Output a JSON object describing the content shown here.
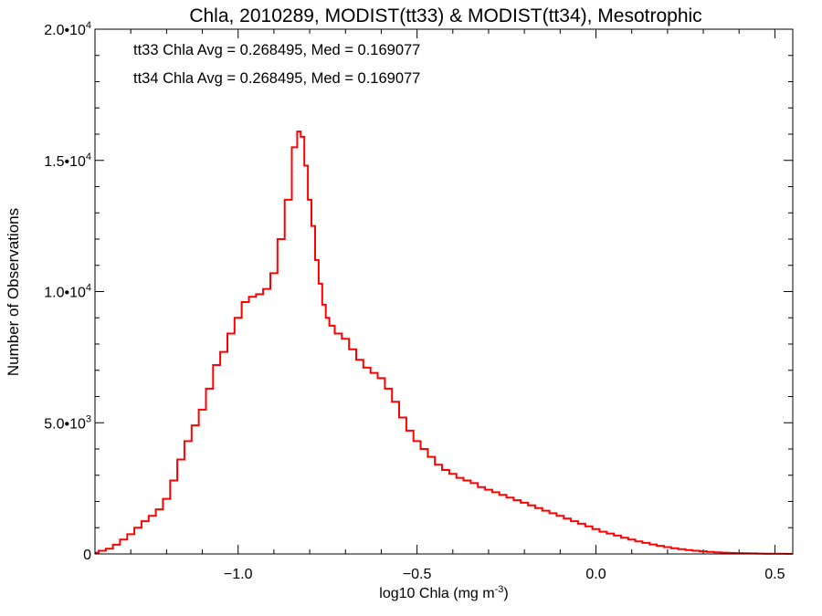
{
  "chart_data": {
    "type": "line",
    "title": "Chla, 2010289, MODIST(tt33) & MODIST(tt34), Mesotrophic",
    "xlabel": "log10 Chla (mg m",
    "xlabel_sup": "-3",
    "xlabel_end": ")",
    "ylabel": "Number of Observations",
    "xlim": [
      -1.4,
      0.55
    ],
    "ylim": [
      0,
      20000
    ],
    "x_ticks": [
      {
        "value": -1.0,
        "label": "−1.0"
      },
      {
        "value": -0.5,
        "label": "−0.5"
      },
      {
        "value": 0.0,
        "label": "0.0"
      },
      {
        "value": 0.5,
        "label": "0.5"
      }
    ],
    "y_ticks": [
      {
        "value": 0,
        "mant": "0",
        "exp": ""
      },
      {
        "value": 5000,
        "mant": "5.0•10",
        "exp": "3"
      },
      {
        "value": 10000,
        "mant": "1.0•10",
        "exp": "4"
      },
      {
        "value": 15000,
        "mant": "1.5•10",
        "exp": "4"
      },
      {
        "value": 20000,
        "mant": "2.0•10",
        "exp": "4"
      }
    ],
    "annotations": [
      {
        "text": "tt33 Chla Avg = 0.268495, Med = 0.169077",
        "color": "#000000"
      },
      {
        "text": "tt34 Chla Avg = 0.268495, Med = 0.169077",
        "color": "#ff0000"
      }
    ],
    "series": [
      {
        "name": "tt34",
        "color": "#ff0000",
        "x": [
          -1.4,
          -1.38,
          -1.36,
          -1.34,
          -1.32,
          -1.3,
          -1.28,
          -1.26,
          -1.24,
          -1.22,
          -1.2,
          -1.18,
          -1.16,
          -1.14,
          -1.12,
          -1.1,
          -1.08,
          -1.06,
          -1.04,
          -1.02,
          -1.0,
          -0.98,
          -0.96,
          -0.94,
          -0.92,
          -0.9,
          -0.88,
          -0.86,
          -0.84,
          -0.83,
          -0.82,
          -0.81,
          -0.8,
          -0.79,
          -0.78,
          -0.77,
          -0.76,
          -0.75,
          -0.74,
          -0.72,
          -0.7,
          -0.68,
          -0.66,
          -0.64,
          -0.62,
          -0.6,
          -0.58,
          -0.56,
          -0.54,
          -0.52,
          -0.5,
          -0.48,
          -0.46,
          -0.44,
          -0.42,
          -0.4,
          -0.38,
          -0.36,
          -0.34,
          -0.32,
          -0.3,
          -0.28,
          -0.26,
          -0.24,
          -0.22,
          -0.2,
          -0.18,
          -0.16,
          -0.14,
          -0.12,
          -0.1,
          -0.08,
          -0.06,
          -0.04,
          -0.02,
          0.0,
          0.02,
          0.04,
          0.06,
          0.08,
          0.1,
          0.12,
          0.14,
          0.16,
          0.18,
          0.2,
          0.22,
          0.24,
          0.26,
          0.28,
          0.3,
          0.32,
          0.34,
          0.36,
          0.38,
          0.4,
          0.42,
          0.44,
          0.46,
          0.48,
          0.5,
          0.52,
          0.54
        ],
        "values": [
          50,
          120,
          200,
          350,
          550,
          750,
          1000,
          1250,
          1450,
          1700,
          2100,
          2800,
          3600,
          4300,
          4900,
          5500,
          6300,
          7200,
          7700,
          8400,
          9000,
          9600,
          9800,
          9900,
          10100,
          10700,
          12000,
          13500,
          15500,
          16100,
          15900,
          14800,
          13500,
          12500,
          11200,
          10300,
          9500,
          9000,
          8700,
          8400,
          8200,
          7800,
          7400,
          7100,
          6900,
          6700,
          6300,
          5800,
          5200,
          4700,
          4300,
          4000,
          3700,
          3400,
          3200,
          3050,
          2900,
          2800,
          2700,
          2550,
          2450,
          2350,
          2250,
          2150,
          2050,
          1950,
          1850,
          1750,
          1650,
          1550,
          1450,
          1350,
          1250,
          1150,
          1050,
          950,
          850,
          780,
          700,
          620,
          550,
          480,
          420,
          360,
          310,
          260,
          220,
          180,
          150,
          120,
          100,
          80,
          60,
          50,
          40,
          30,
          25,
          20,
          15,
          12,
          10,
          8,
          5
        ]
      }
    ]
  }
}
